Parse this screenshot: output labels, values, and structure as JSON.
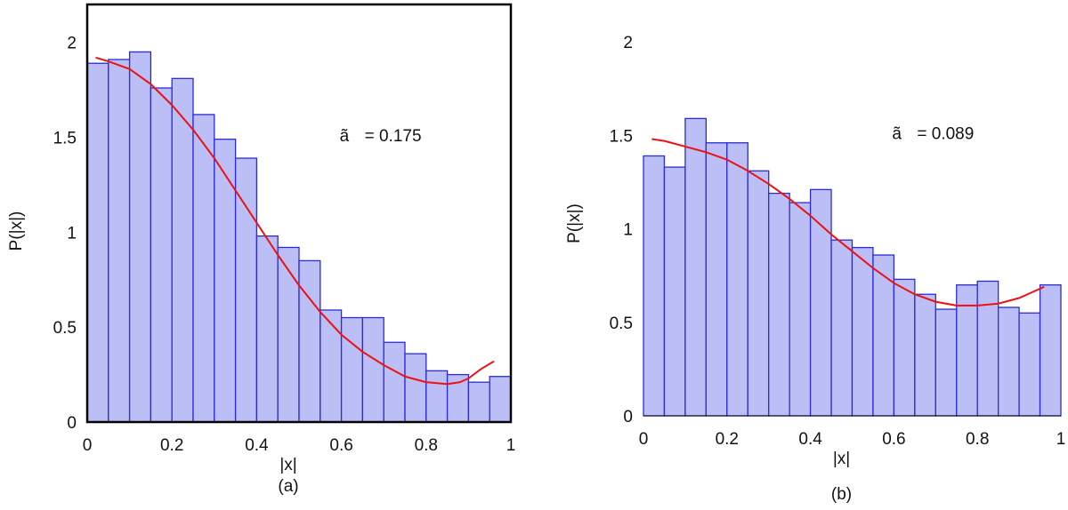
{
  "colors": {
    "bar_fill": "#bbbff5",
    "bar_stroke": "#2b2bd9",
    "curve": "#ee1111",
    "axis": "#000000"
  },
  "chart_data": [
    {
      "type": "bar",
      "panel_label": "(a)",
      "xlabel": "|x|",
      "ylabel": "P(|x|)",
      "xlim": [
        0,
        1
      ],
      "ylim": [
        0,
        2.2
      ],
      "xticks": [
        0,
        0.2,
        0.4,
        0.6,
        0.8,
        1
      ],
      "xtick_labels": [
        "0",
        "0.2",
        "0.4",
        "0.6",
        "0.8",
        "1"
      ],
      "yticks": [
        0,
        0.5,
        1,
        1.5,
        2
      ],
      "ytick_labels": [
        "0",
        "0.5",
        "1",
        "1.5",
        "2"
      ],
      "bin_edges": [
        0,
        0.05,
        0.1,
        0.15,
        0.2,
        0.25,
        0.3,
        0.35,
        0.4,
        0.45,
        0.5,
        0.55,
        0.6,
        0.65,
        0.7,
        0.75,
        0.8,
        0.85,
        0.9,
        0.95,
        1.0
      ],
      "values": [
        1.89,
        1.91,
        1.95,
        1.76,
        1.81,
        1.62,
        1.49,
        1.39,
        0.98,
        0.92,
        0.85,
        0.59,
        0.55,
        0.55,
        0.42,
        0.36,
        0.27,
        0.25,
        0.21,
        0.24
      ],
      "fit_curve": {
        "x": [
          0.02,
          0.05,
          0.1,
          0.15,
          0.2,
          0.25,
          0.3,
          0.35,
          0.4,
          0.45,
          0.5,
          0.55,
          0.6,
          0.65,
          0.7,
          0.75,
          0.8,
          0.85,
          0.88,
          0.9,
          0.93,
          0.96
        ],
        "y": [
          1.92,
          1.9,
          1.86,
          1.78,
          1.67,
          1.54,
          1.39,
          1.22,
          1.05,
          0.88,
          0.72,
          0.58,
          0.46,
          0.37,
          0.3,
          0.24,
          0.21,
          0.2,
          0.21,
          0.23,
          0.28,
          0.32
        ]
      },
      "annotation": {
        "symbol": "ã",
        "text": "= 0.175",
        "x": 0.6,
        "y": 1.48
      }
    },
    {
      "type": "bar",
      "panel_label": "(b)",
      "xlabel": "|x|",
      "ylabel": "P(|x|)",
      "xlim": [
        0,
        1
      ],
      "ylim": [
        0,
        2.2
      ],
      "xticks": [
        0,
        0.2,
        0.4,
        0.6,
        0.8,
        1
      ],
      "xtick_labels": [
        "0",
        "0.2",
        "0.4",
        "0.6",
        "0.8",
        "1"
      ],
      "yticks": [
        0,
        0.5,
        1,
        1.5,
        2
      ],
      "ytick_labels": [
        "0",
        "0.5",
        "1",
        "1.5",
        "2"
      ],
      "bin_edges": [
        0,
        0.05,
        0.1,
        0.15,
        0.2,
        0.25,
        0.3,
        0.35,
        0.4,
        0.45,
        0.5,
        0.55,
        0.6,
        0.65,
        0.7,
        0.75,
        0.8,
        0.85,
        0.9,
        0.95,
        1.0
      ],
      "values": [
        1.39,
        1.33,
        1.59,
        1.46,
        1.46,
        1.31,
        1.19,
        1.14,
        1.21,
        0.94,
        0.9,
        0.86,
        0.73,
        0.65,
        0.57,
        0.7,
        0.72,
        0.58,
        0.55,
        0.7
      ],
      "fit_curve": {
        "x": [
          0.02,
          0.05,
          0.1,
          0.15,
          0.2,
          0.25,
          0.3,
          0.35,
          0.4,
          0.45,
          0.5,
          0.55,
          0.6,
          0.65,
          0.7,
          0.75,
          0.8,
          0.85,
          0.9,
          0.93,
          0.96
        ],
        "y": [
          1.48,
          1.47,
          1.44,
          1.41,
          1.37,
          1.31,
          1.24,
          1.16,
          1.07,
          0.97,
          0.88,
          0.79,
          0.71,
          0.65,
          0.61,
          0.59,
          0.59,
          0.6,
          0.63,
          0.66,
          0.69
        ]
      },
      "annotation": {
        "symbol": "ã",
        "text": "= 0.089",
        "x": 0.6,
        "y": 1.48
      }
    }
  ]
}
